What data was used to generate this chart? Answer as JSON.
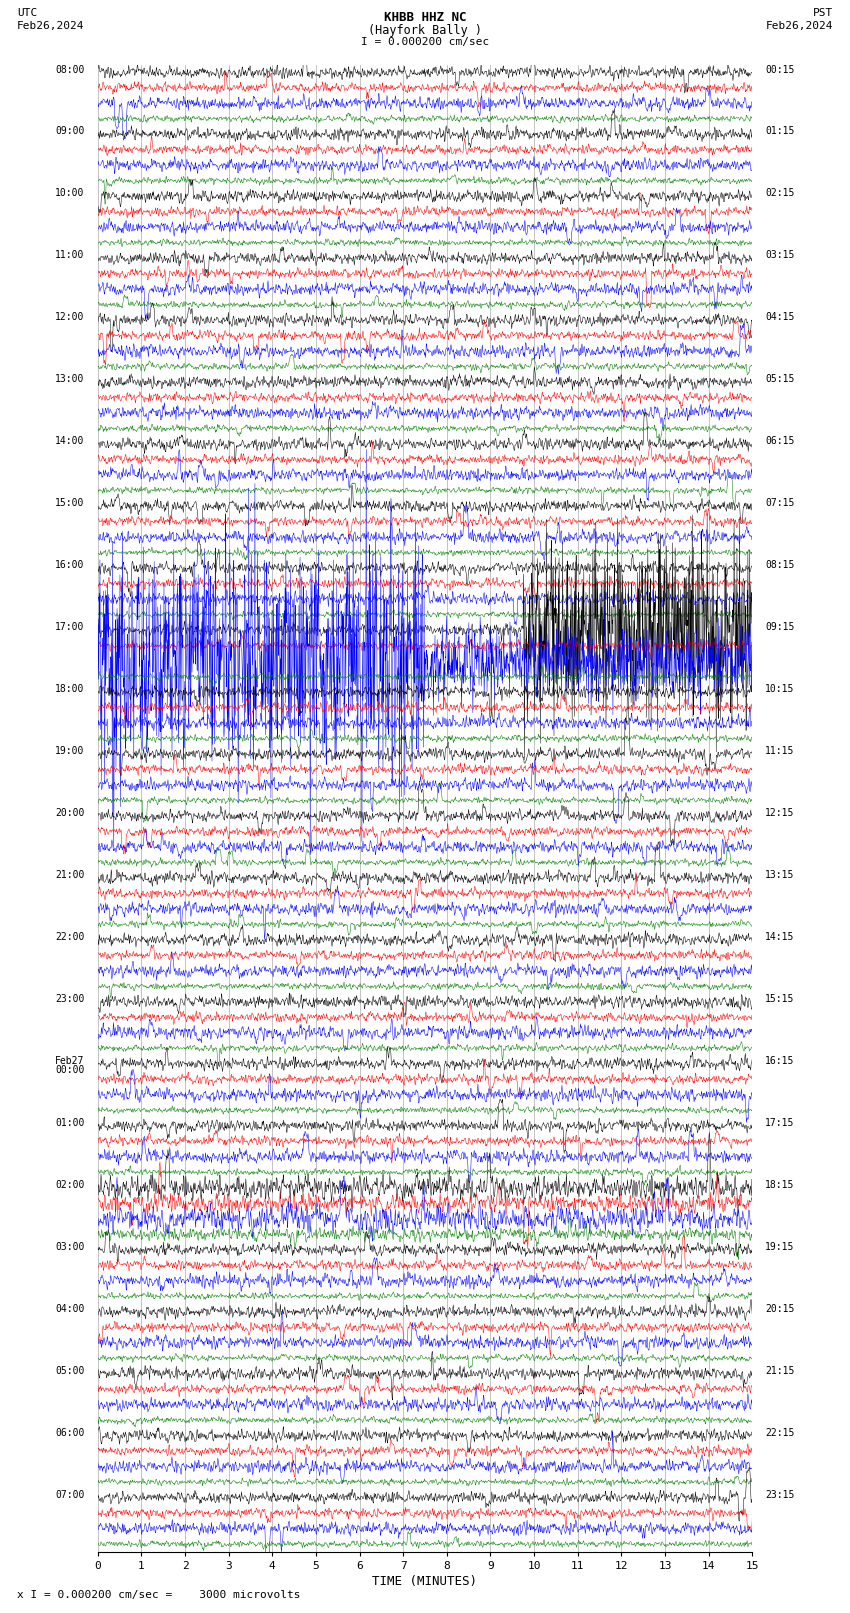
{
  "title_line1": "KHBB HHZ NC",
  "title_line2": "(Hayfork Bally )",
  "scale_text": "I = 0.000200 cm/sec",
  "utc_label1": "UTC",
  "utc_label2": "Feb26,2024",
  "pst_label1": "PST",
  "pst_label2": "Feb26,2024",
  "left_times": [
    "08:00",
    "09:00",
    "10:00",
    "11:00",
    "12:00",
    "13:00",
    "14:00",
    "15:00",
    "16:00",
    "17:00",
    "18:00",
    "19:00",
    "20:00",
    "21:00",
    "22:00",
    "23:00",
    "Feb27\n00:00",
    "01:00",
    "02:00",
    "03:00",
    "04:00",
    "05:00",
    "06:00",
    "07:00"
  ],
  "right_times": [
    "00:15",
    "01:15",
    "02:15",
    "03:15",
    "04:15",
    "05:15",
    "06:15",
    "07:15",
    "08:15",
    "09:15",
    "10:15",
    "11:15",
    "12:15",
    "13:15",
    "14:15",
    "15:15",
    "16:15",
    "17:15",
    "18:15",
    "19:15",
    "20:15",
    "21:15",
    "22:15",
    "23:15"
  ],
  "colors": [
    "black",
    "red",
    "blue",
    "green"
  ],
  "n_hours": 24,
  "traces_per_hour": 4,
  "x_min": 0,
  "x_max": 15,
  "xlabel": "TIME (MINUTES)",
  "footer_text": "x I = 0.000200 cm/sec =    3000 microvolts",
  "bg_color": "white",
  "grid_color": "#888888",
  "noise_amp": [
    0.28,
    0.22,
    0.3,
    0.15
  ],
  "lw": 0.35
}
